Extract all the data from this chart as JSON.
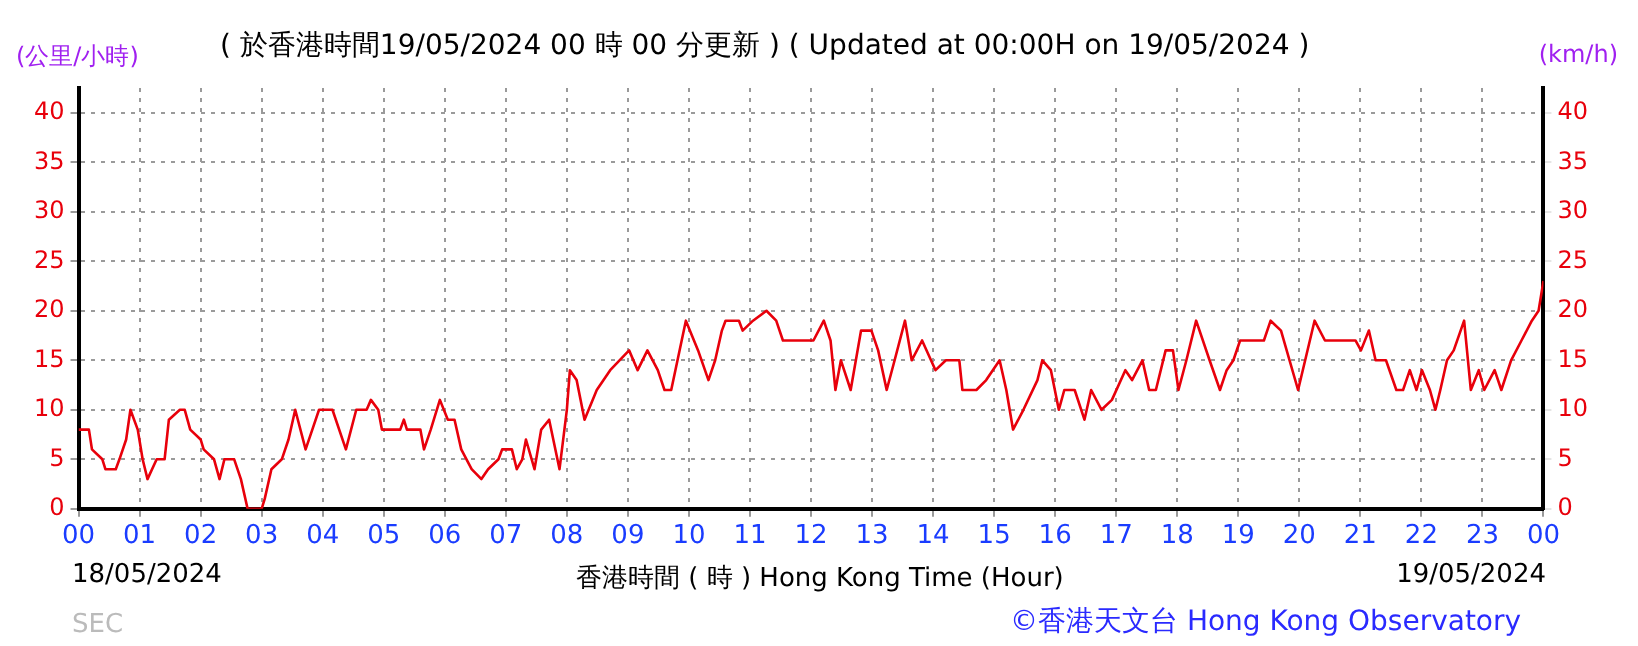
{
  "chart_data": {
    "type": "line",
    "title": "( 於香港時間19/05/2024 00 時 00 分更新 ) ( Updated at 00:00H on 19/05/2024 )",
    "xlabel": "香港時間 ( 時 ) Hong Kong Time (Hour)",
    "ylabel": "(公里/小時)",
    "y2label": "(km/h)",
    "annotations": [
      "18/05/2024",
      "19/05/2024",
      "SEC",
      "©香港天文台 Hong Kong Observatory"
    ],
    "x": [
      0,
      0.17,
      0.22,
      0.39,
      0.44,
      0.61,
      0.67,
      0.78,
      0.85,
      0.97,
      1.05,
      1.13,
      1.28,
      1.41,
      1.48,
      1.66,
      1.74,
      1.83,
      2.0,
      2.05,
      2.22,
      2.31,
      2.39,
      2.55,
      2.66,
      2.77,
      3.0,
      3.05,
      3.16,
      3.33,
      3.44,
      3.55,
      3.72,
      3.83,
      3.94,
      4.16,
      4.38,
      4.55,
      4.72,
      4.79,
      4.91,
      4.97,
      5.27,
      5.33,
      5.38,
      5.6,
      5.66,
      5.77,
      5.92,
      6.05,
      6.16,
      6.27,
      6.44,
      6.6,
      6.71,
      6.88,
      6.94,
      7.1,
      7.18,
      7.27,
      7.33,
      7.47,
      7.58,
      7.71,
      7.88,
      8.0,
      8.05,
      8.16,
      8.29,
      8.49,
      8.71,
      9.02,
      9.16,
      9.32,
      9.49,
      9.6,
      9.71,
      9.95,
      10.15,
      10.32,
      10.43,
      10.54,
      10.6,
      10.82,
      10.88,
      11.05,
      11.27,
      11.43,
      11.54,
      11.71,
      12.04,
      12.21,
      12.32,
      12.4,
      12.49,
      12.65,
      12.82,
      12.99,
      13.1,
      13.24,
      13.37,
      13.54,
      13.65,
      13.82,
      14.04,
      14.21,
      14.43,
      14.48,
      14.71,
      14.87,
      15.09,
      15.2,
      15.31,
      15.48,
      15.71,
      15.79,
      15.93,
      16.06,
      16.15,
      16.32,
      16.48,
      16.59,
      16.76,
      16.93,
      17.15,
      17.26,
      17.43,
      17.54,
      17.65,
      17.81,
      17.93,
      18.02,
      18.15,
      18.31,
      18.53,
      18.7,
      18.81,
      18.92,
      19.03,
      19.42,
      19.53,
      19.7,
      19.98,
      20.25,
      20.42,
      20.92,
      21.01,
      21.14,
      21.25,
      21.42,
      21.59,
      21.7,
      21.81,
      21.92,
      22.01,
      22.14,
      22.23,
      22.31,
      22.42,
      22.53,
      22.7,
      22.81,
      22.94,
      23.03,
      23.2,
      23.31,
      23.47,
      23.64,
      23.81,
      23.92,
      24.0
    ],
    "series": [
      {
        "color": "#e8000b",
        "values": [
          8,
          8,
          6,
          5,
          4,
          4,
          5,
          7,
          10,
          8,
          5,
          3,
          5,
          5,
          9,
          10,
          10,
          8,
          7,
          6,
          5,
          3,
          5,
          5,
          3,
          0,
          0,
          1,
          4,
          5,
          7,
          10,
          6,
          8,
          10,
          10,
          6,
          10,
          10,
          11,
          10,
          8,
          8,
          9,
          8,
          8,
          6,
          8,
          11,
          9,
          9,
          6,
          4,
          3,
          4,
          5,
          6,
          6,
          4,
          5,
          7,
          4,
          8,
          9,
          4,
          10,
          14,
          13,
          9,
          12,
          14,
          16,
          14,
          16,
          14,
          12,
          12,
          19,
          16,
          13,
          15,
          18,
          19,
          19,
          18,
          19,
          20,
          19,
          17,
          17,
          17,
          19,
          17,
          12,
          15,
          12,
          18,
          18,
          16,
          12,
          15,
          19,
          15,
          17,
          14,
          15,
          15,
          12,
          12,
          13,
          15,
          12,
          8,
          10,
          13,
          15,
          14,
          10,
          12,
          12,
          9,
          12,
          10,
          11,
          14,
          13,
          15,
          12,
          12,
          16,
          16,
          12,
          15,
          19,
          15,
          12,
          14,
          15,
          17,
          17,
          19,
          18,
          12,
          19,
          17,
          17,
          16,
          18,
          15,
          15,
          12,
          12,
          14,
          12,
          14,
          12,
          10,
          12,
          15,
          16,
          19,
          12,
          14,
          12,
          14,
          12,
          15,
          17,
          19,
          20,
          23
        ]
      }
    ],
    "xlim": [
      0,
      24
    ],
    "xticks": [
      {
        "value": 0,
        "label": "00"
      },
      {
        "value": 1,
        "label": "01"
      },
      {
        "value": 2,
        "label": "02"
      },
      {
        "value": 3,
        "label": "03"
      },
      {
        "value": 4,
        "label": "04"
      },
      {
        "value": 5,
        "label": "05"
      },
      {
        "value": 6,
        "label": "06"
      },
      {
        "value": 7,
        "label": "07"
      },
      {
        "value": 8,
        "label": "08"
      },
      {
        "value": 9,
        "label": "09"
      },
      {
        "value": 10,
        "label": "10"
      },
      {
        "value": 11,
        "label": "11"
      },
      {
        "value": 12,
        "label": "12"
      },
      {
        "value": 13,
        "label": "13"
      },
      {
        "value": 14,
        "label": "14"
      },
      {
        "value": 15,
        "label": "15"
      },
      {
        "value": 16,
        "label": "16"
      },
      {
        "value": 17,
        "label": "17"
      },
      {
        "value": 18,
        "label": "18"
      },
      {
        "value": 19,
        "label": "19"
      },
      {
        "value": 20,
        "label": "20"
      },
      {
        "value": 21,
        "label": "21"
      },
      {
        "value": 22,
        "label": "22"
      },
      {
        "value": 23,
        "label": "23"
      },
      {
        "value": 24,
        "label": "00"
      }
    ],
    "ylim": [
      0,
      42.5
    ],
    "yticks": [
      0,
      5,
      10,
      15,
      20,
      25,
      30,
      35,
      40
    ],
    "y2lim": [
      0,
      42.5
    ],
    "y2ticks": [
      0,
      5,
      10,
      15,
      20,
      25,
      30,
      35,
      40
    ],
    "grid": true,
    "legend": false,
    "marker": "none"
  }
}
